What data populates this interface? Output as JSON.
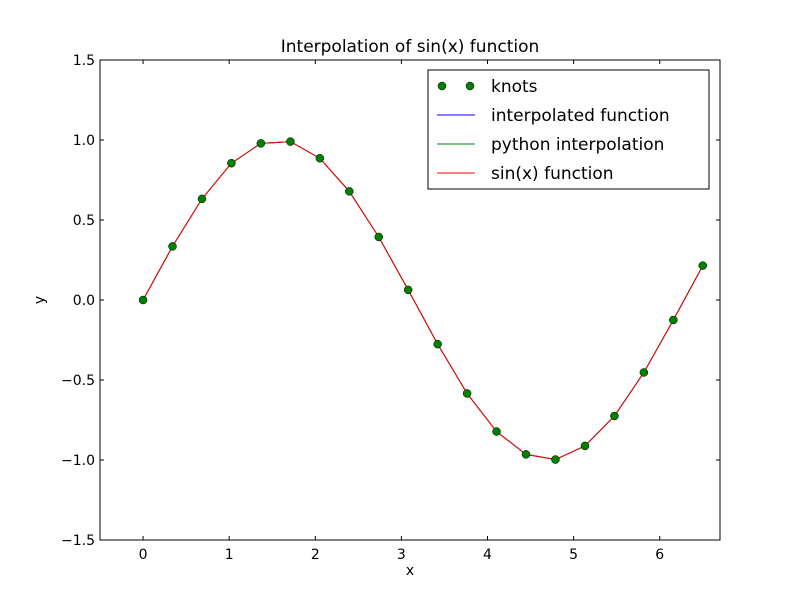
{
  "chart_data": {
    "type": "line",
    "title": "Interpolation of sin(x) function",
    "xlabel": "x",
    "ylabel": "y",
    "xlim": [
      -0.5,
      6.7
    ],
    "ylim": [
      -1.5,
      1.5
    ],
    "xticks": [
      0,
      1,
      2,
      3,
      4,
      5,
      6
    ],
    "xtick_labels": [
      "0",
      "1",
      "2",
      "3",
      "4",
      "5",
      "6"
    ],
    "yticks": [
      -1.5,
      -1.0,
      -0.5,
      0.0,
      0.5,
      1.0,
      1.5
    ],
    "ytick_labels": [
      "−1.5",
      "−1.0",
      "−0.5",
      "0.0",
      "0.5",
      "1.0",
      "1.5"
    ],
    "grid": false,
    "legend_position": "top-right",
    "series": [
      {
        "name": "knots",
        "style": "markers",
        "color": "#008000",
        "x": [
          0,
          0.342,
          0.684,
          1.026,
          1.368,
          1.711,
          2.053,
          2.395,
          2.737,
          3.079,
          3.421,
          3.763,
          4.105,
          4.447,
          4.789,
          5.132,
          5.474,
          5.816,
          6.158,
          6.5
        ],
        "values": [
          0.0,
          0.335,
          0.632,
          0.855,
          0.979,
          0.99,
          0.886,
          0.679,
          0.394,
          0.063,
          -0.276,
          -0.584,
          -0.822,
          -0.965,
          -0.997,
          -0.912,
          -0.725,
          -0.453,
          -0.125,
          0.215
        ]
      },
      {
        "name": "interpolated function",
        "style": "line",
        "color": "#0000ff",
        "x": [
          0,
          0.342,
          0.684,
          1.026,
          1.368,
          1.711,
          2.053,
          2.395,
          2.737,
          3.079,
          3.421,
          3.763,
          4.105,
          4.447,
          4.789,
          5.132,
          5.474,
          5.816,
          6.158,
          6.5
        ],
        "values": [
          0.0,
          0.335,
          0.632,
          0.855,
          0.979,
          0.99,
          0.886,
          0.679,
          0.394,
          0.063,
          -0.276,
          -0.584,
          -0.822,
          -0.965,
          -0.997,
          -0.912,
          -0.725,
          -0.453,
          -0.125,
          0.215
        ]
      },
      {
        "name": "python interpolation",
        "style": "line",
        "color": "#008000",
        "x": [
          0,
          0.342,
          0.684,
          1.026,
          1.368,
          1.711,
          2.053,
          2.395,
          2.737,
          3.079,
          3.421,
          3.763,
          4.105,
          4.447,
          4.789,
          5.132,
          5.474,
          5.816,
          6.158,
          6.5
        ],
        "values": [
          0.0,
          0.335,
          0.632,
          0.855,
          0.979,
          0.99,
          0.886,
          0.679,
          0.394,
          0.063,
          -0.276,
          -0.584,
          -0.822,
          -0.965,
          -0.997,
          -0.912,
          -0.725,
          -0.453,
          -0.125,
          0.215
        ]
      },
      {
        "name": "sin(x) function",
        "style": "line",
        "color": "#ff0000",
        "x": [
          0,
          0.342,
          0.684,
          1.026,
          1.368,
          1.711,
          2.053,
          2.395,
          2.737,
          3.079,
          3.421,
          3.763,
          4.105,
          4.447,
          4.789,
          5.132,
          5.474,
          5.816,
          6.158,
          6.5
        ],
        "values": [
          0.0,
          0.335,
          0.632,
          0.855,
          0.979,
          0.99,
          0.886,
          0.679,
          0.394,
          0.063,
          -0.276,
          -0.584,
          -0.822,
          -0.965,
          -0.997,
          -0.912,
          -0.725,
          -0.453,
          -0.125,
          0.215
        ]
      }
    ]
  }
}
